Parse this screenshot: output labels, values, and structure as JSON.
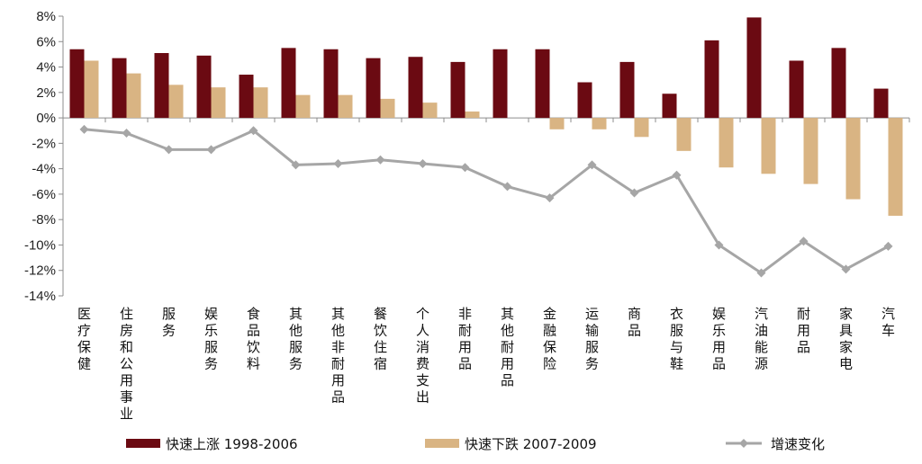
{
  "chart_data": {
    "type": "bar",
    "title": "",
    "xlabel": "",
    "ylabel": "",
    "ylim": [
      -14,
      8
    ],
    "yticks": [
      8,
      6,
      4,
      2,
      0,
      -2,
      -4,
      -6,
      -8,
      -10,
      -12,
      -14
    ],
    "ytick_labels": [
      "8%",
      "6%",
      "4%",
      "2%",
      "0%",
      "-2%",
      "-4%",
      "-6%",
      "-8%",
      "-10%",
      "-12%",
      "-14%"
    ],
    "grid": false,
    "legend_position": "bottom",
    "categories": [
      "医疗保健",
      "住房和公用事业",
      "服务",
      "娱乐服务",
      "食品饮料",
      "其他服务",
      "其他非耐用品",
      "餐饮住宿",
      "个人消费支出",
      "非耐用品",
      "其他耐用品",
      "金融保险",
      "运输服务",
      "商品",
      "衣服与鞋",
      "娱乐用品",
      "汽油能源",
      "耐用品",
      "家具家电",
      "汽车"
    ],
    "series": [
      {
        "name": "快速上涨 1998-2006",
        "kind": "bar",
        "color": "#6b0a12",
        "values": [
          5.4,
          4.7,
          5.1,
          4.9,
          3.4,
          5.5,
          5.4,
          4.7,
          4.8,
          4.4,
          5.4,
          5.4,
          2.8,
          4.4,
          1.9,
          6.1,
          7.9,
          4.5,
          5.5,
          2.3
        ]
      },
      {
        "name": "快速下跌 2007-2009",
        "kind": "bar",
        "color": "#d9b483",
        "values": [
          4.5,
          3.5,
          2.6,
          2.4,
          2.4,
          1.8,
          1.8,
          1.5,
          1.2,
          0.5,
          0.0,
          -0.9,
          -0.9,
          -1.5,
          -2.6,
          -3.9,
          -4.4,
          -5.2,
          -6.4,
          -7.7
        ]
      },
      {
        "name": "增速变化",
        "kind": "line",
        "color": "#a6a6a6",
        "values": [
          -0.9,
          -1.2,
          -2.5,
          -2.5,
          -1.0,
          -3.7,
          -3.6,
          -3.3,
          -3.6,
          -3.9,
          -5.4,
          -6.3,
          -3.7,
          -5.9,
          -4.5,
          -10.0,
          -12.2,
          -9.7,
          -11.9,
          -10.1
        ]
      }
    ]
  }
}
